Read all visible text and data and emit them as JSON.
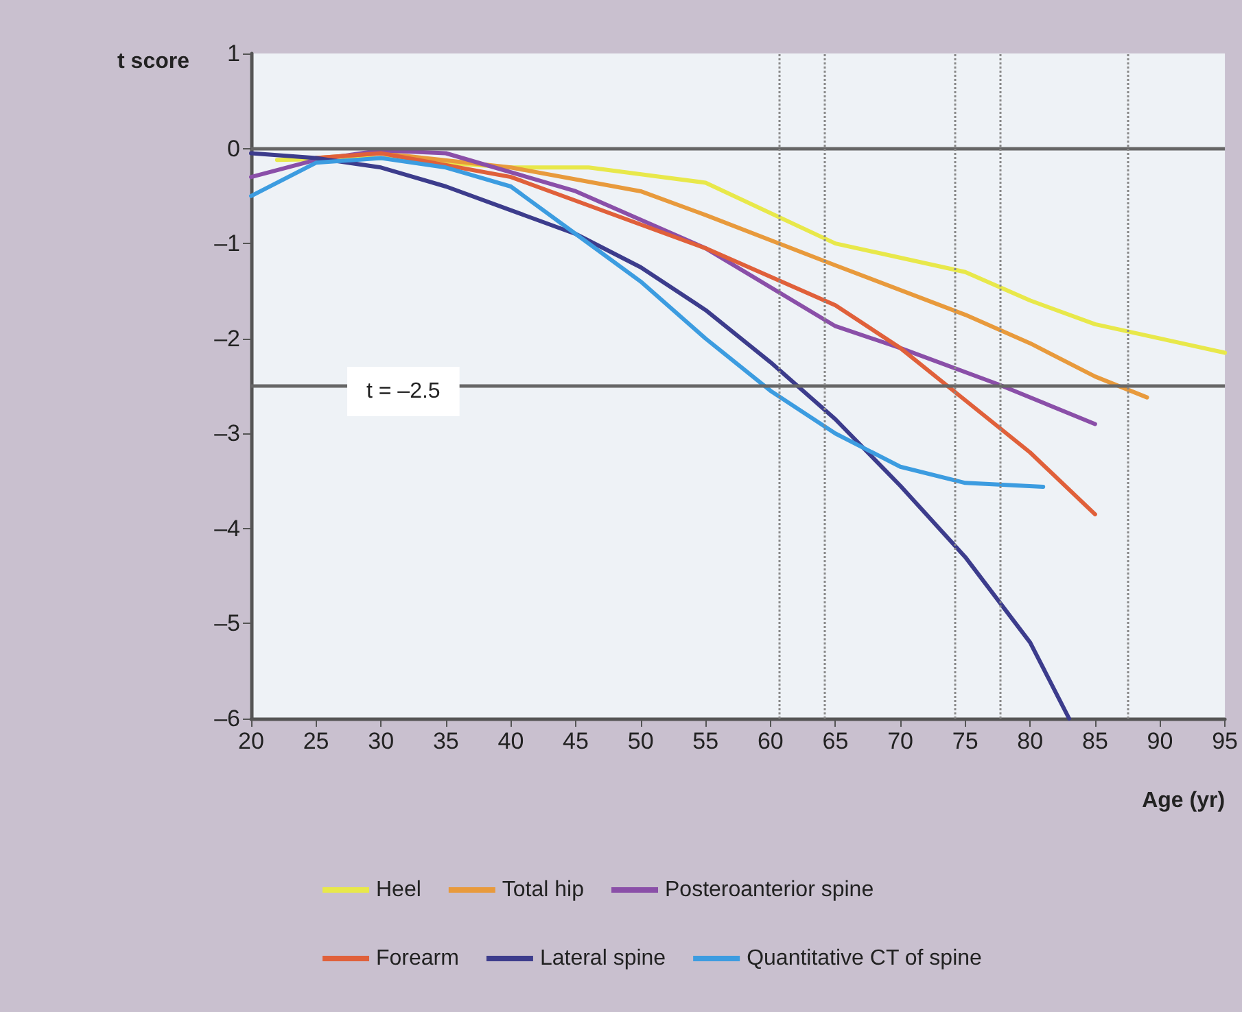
{
  "chart_data": {
    "type": "line",
    "ylabel": "t score",
    "xlabel": "Age (yr)",
    "xlim": [
      20,
      95
    ],
    "xticks": [
      20,
      25,
      30,
      35,
      40,
      45,
      50,
      55,
      60,
      65,
      70,
      75,
      80,
      85,
      90,
      95
    ],
    "ylim": [
      -6,
      1
    ],
    "yticks": [
      1,
      0,
      {
        "value": -1,
        "label": "–1"
      },
      {
        "value": -2,
        "label": "–2"
      },
      {
        "value": -3,
        "label": "–3"
      },
      {
        "value": -4,
        "label": "–4"
      },
      {
        "value": -5,
        "label": "–5"
      },
      {
        "value": -6,
        "label": "–6"
      }
    ],
    "grid": false,
    "legend": "bottom",
    "marker": "none",
    "line_style": "solid",
    "series": [
      {
        "name": "Heel",
        "color": "#e8e84a",
        "x": [
          22,
          30,
          40,
          46,
          55,
          65,
          75,
          80,
          85,
          95
        ],
        "values": [
          -0.12,
          -0.1,
          -0.2,
          -0.2,
          -0.36,
          -1.0,
          -1.3,
          -1.6,
          -1.85,
          -2.15
        ]
      },
      {
        "name": "Total hip",
        "color": "#e89a3c",
        "x": [
          25,
          30,
          40,
          50,
          55,
          65,
          75,
          80,
          85,
          89
        ],
        "values": [
          -0.1,
          -0.05,
          -0.2,
          -0.45,
          -0.7,
          -1.23,
          -1.75,
          -2.05,
          -2.4,
          -2.62
        ]
      },
      {
        "name": "Posteroanterior spine",
        "color": "#8a4fa8",
        "x": [
          20,
          25,
          30,
          35,
          45,
          55,
          65,
          70,
          77.5,
          85
        ],
        "values": [
          -0.3,
          -0.12,
          -0.02,
          -0.05,
          -0.45,
          -1.05,
          -1.87,
          -2.1,
          -2.48,
          -2.9
        ]
      },
      {
        "name": "Forearm",
        "color": "#e0603a",
        "x": [
          25,
          30,
          40,
          45,
          55,
          65,
          70,
          75,
          80,
          85
        ],
        "values": [
          -0.1,
          -0.05,
          -0.3,
          -0.55,
          -1.05,
          -1.65,
          -2.1,
          -2.65,
          -3.2,
          -3.85
        ]
      },
      {
        "name": "Lateral spine",
        "color": "#3c3c8c",
        "x": [
          20,
          25,
          30,
          35,
          40,
          45,
          50,
          55,
          60,
          65,
          70,
          75,
          80,
          83
        ],
        "values": [
          -0.05,
          -0.1,
          -0.2,
          -0.4,
          -0.65,
          -0.9,
          -1.25,
          -1.7,
          -2.25,
          -2.85,
          -3.55,
          -4.3,
          -5.2,
          -6
        ]
      },
      {
        "name": "Quantitative CT of spine",
        "color": "#3c9ce0",
        "x": [
          20,
          25,
          30,
          35,
          40,
          45,
          50,
          55,
          60,
          65,
          70,
          75,
          81
        ],
        "values": [
          -0.5,
          -0.15,
          -0.1,
          -0.2,
          -0.4,
          -0.9,
          -1.4,
          -2.0,
          -2.55,
          -3.0,
          -3.35,
          -3.52,
          -3.56
        ]
      }
    ],
    "ref_lines": [
      {
        "axis": "y",
        "value": 0,
        "color": "#666666",
        "line_style": "solid"
      },
      {
        "axis": "y",
        "value": -2.5,
        "label": "t = –2.5",
        "color": "#666666",
        "line_style": "solid"
      },
      {
        "axis": "x",
        "value": 60.7,
        "color": "#888888",
        "line_style": "dotted"
      },
      {
        "axis": "x",
        "value": 64.2,
        "color": "#888888",
        "line_style": "dotted"
      },
      {
        "axis": "x",
        "value": 74.2,
        "color": "#888888",
        "line_style": "dotted"
      },
      {
        "axis": "x",
        "value": 77.7,
        "color": "#888888",
        "line_style": "dotted"
      },
      {
        "axis": "x",
        "value": 87.5,
        "color": "#888888",
        "line_style": "dotted"
      }
    ]
  }
}
